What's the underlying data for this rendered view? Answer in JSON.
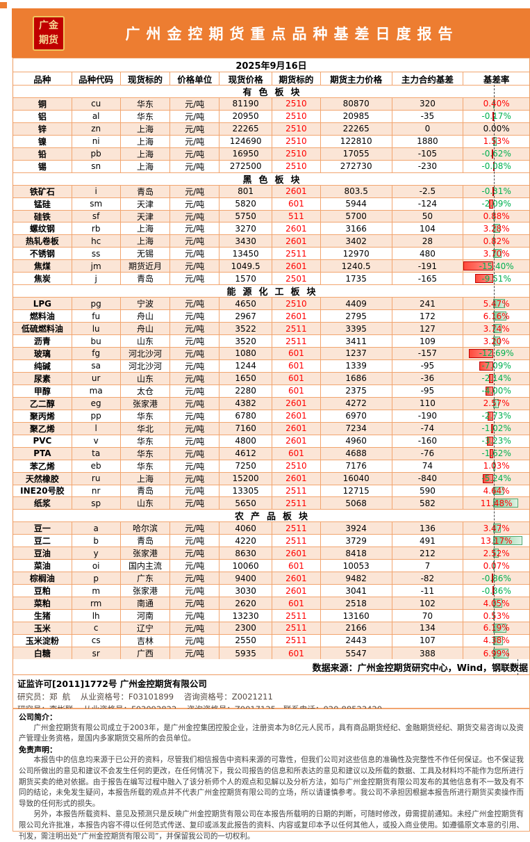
{
  "colors": {
    "accent_orange": "#ED7D31",
    "row_peach": "#FBE5D6",
    "grid_orange": "#F2A56F",
    "logo_red": "#C00000",
    "logo_gold": "#F5D794",
    "positive_text": "#FF0000",
    "negative_text": "#00B050",
    "bar_positive": "#7FCB97",
    "bar_negative": "#FF4A3C"
  },
  "report": {
    "logo_line1": "广金",
    "logo_line2": "期货",
    "title": "广州金控期货重点品种基差日度报告",
    "date": "2025年9月16日",
    "columns": [
      "品种",
      "品种代码",
      "现货标的",
      "价格单位",
      "现货价格",
      "期货标的",
      "期货主力价格",
      "主力合约基差",
      "基差率"
    ],
    "bar_axis_percent": 45,
    "bar_max_positive": 13.17,
    "bar_max_negative": 15.4,
    "sections": [
      {
        "name": "有色板块",
        "rows": [
          [
            "铜",
            "cu",
            "华东",
            "元/吨",
            "81190",
            "2510",
            "80870",
            "320",
            "0.40%"
          ],
          [
            "铝",
            "al",
            "华东",
            "元/吨",
            "20950",
            "2510",
            "20985",
            "-35",
            "-0.17%"
          ],
          [
            "锌",
            "zn",
            "上海",
            "元/吨",
            "22265",
            "2510",
            "22265",
            "0",
            "0.00%"
          ],
          [
            "镍",
            "ni",
            "上海",
            "元/吨",
            "124690",
            "2510",
            "122810",
            "1880",
            "1.53%"
          ],
          [
            "铅",
            "pb",
            "上海",
            "元/吨",
            "16950",
            "2510",
            "17055",
            "-105",
            "-0.62%"
          ],
          [
            "锡",
            "sn",
            "上海",
            "元/吨",
            "272500",
            "2510",
            "272730",
            "-230",
            "-0.08%"
          ]
        ]
      },
      {
        "name": "黑色板块",
        "rows": [
          [
            "铁矿石",
            "i",
            "青岛",
            "元/吨",
            "801",
            "2601",
            "803.5",
            "-2.5",
            "-0.31%"
          ],
          [
            "锰硅",
            "sm",
            "天津",
            "元/吨",
            "5820",
            "601",
            "5944",
            "-124",
            "-2.09%"
          ],
          [
            "硅铁",
            "sf",
            "天津",
            "元/吨",
            "5750",
            "511",
            "5700",
            "50",
            "0.88%"
          ],
          [
            "螺纹钢",
            "rb",
            "上海",
            "元/吨",
            "3270",
            "2601",
            "3166",
            "104",
            "3.28%"
          ],
          [
            "热轧卷板",
            "hc",
            "上海",
            "元/吨",
            "3430",
            "2601",
            "3402",
            "28",
            "0.82%"
          ],
          [
            "不锈钢",
            "ss",
            "无锡",
            "元/吨",
            "13450",
            "2511",
            "12970",
            "480",
            "3.70%"
          ],
          [
            "焦煤",
            "jm",
            "期货近月",
            "元/吨",
            "1049.5",
            "2601",
            "1240.5",
            "-191",
            "-15.40%"
          ],
          [
            "焦炭",
            "j",
            "青岛",
            "元/吨",
            "1570",
            "2501",
            "1735",
            "-165",
            "-9.51%"
          ]
        ]
      },
      {
        "name": "能源化工板块",
        "rows": [
          [
            "LPG",
            "pg",
            "宁波",
            "元/吨",
            "4650",
            "2510",
            "4409",
            "241",
            "5.47%"
          ],
          [
            "燃料油",
            "fu",
            "舟山",
            "元/吨",
            "2967",
            "2601",
            "2795",
            "172",
            "6.16%"
          ],
          [
            "低硫燃料油",
            "lu",
            "舟山",
            "元/吨",
            "3522",
            "2511",
            "3395",
            "127",
            "3.74%"
          ],
          [
            "沥青",
            "bu",
            "山东",
            "元/吨",
            "3520",
            "2511",
            "3411",
            "109",
            "3.20%"
          ],
          [
            "玻璃",
            "fg",
            "河北沙河",
            "元/吨",
            "1080",
            "601",
            "1237",
            "-157",
            "-12.69%"
          ],
          [
            "纯碱",
            "sa",
            "河北沙河",
            "元/吨",
            "1244",
            "601",
            "1339",
            "-95",
            "-7.09%"
          ],
          [
            "尿素",
            "ur",
            "山东",
            "元/吨",
            "1650",
            "601",
            "1686",
            "-36",
            "-2.14%"
          ],
          [
            "甲醇",
            "ma",
            "太仓",
            "元/吨",
            "2280",
            "601",
            "2375",
            "-95",
            "-4.00%"
          ],
          [
            "乙二醇",
            "eg",
            "张家港",
            "元/吨",
            "4382",
            "2601",
            "4272",
            "110",
            "2.57%"
          ],
          [
            "聚丙烯",
            "pp",
            "华东",
            "元/吨",
            "6780",
            "2601",
            "6970",
            "-190",
            "-2.73%"
          ],
          [
            "聚乙烯",
            "l",
            "华北",
            "元/吨",
            "7160",
            "2601",
            "7234",
            "-74",
            "-1.02%"
          ],
          [
            "PVC",
            "v",
            "华东",
            "元/吨",
            "4800",
            "2601",
            "4960",
            "-160",
            "-3.23%"
          ],
          [
            "PTA",
            "ta",
            "华东",
            "元/吨",
            "4612",
            "601",
            "4688",
            "-76",
            "-1.62%"
          ],
          [
            "苯乙烯",
            "eb",
            "华东",
            "元/吨",
            "7250",
            "2510",
            "7176",
            "74",
            "1.03%"
          ],
          [
            "天然橡胶",
            "ru",
            "上海",
            "元/吨",
            "15200",
            "2601",
            "16040",
            "-840",
            "-5.24%"
          ],
          [
            "INE20号胶",
            "nr",
            "青岛",
            "元/吨",
            "13305",
            "2511",
            "12715",
            "590",
            "4.64%"
          ],
          [
            "纸浆",
            "sp",
            "山东",
            "元/吨",
            "5650",
            "2511",
            "5068",
            "582",
            "11.48%"
          ]
        ]
      },
      {
        "name": "农产品板块",
        "rows": [
          [
            "豆一",
            "a",
            "哈尔滨",
            "元/吨",
            "4060",
            "2511",
            "3924",
            "136",
            "3.47%"
          ],
          [
            "豆二",
            "b",
            "青岛",
            "元/吨",
            "4220",
            "2511",
            "3729",
            "491",
            "13.17%"
          ],
          [
            "豆油",
            "y",
            "张家港",
            "元/吨",
            "8630",
            "2601",
            "8418",
            "212",
            "2.52%"
          ],
          [
            "菜油",
            "oi",
            "国内主流",
            "元/吨",
            "10060",
            "601",
            "10053",
            "7",
            "0.07%"
          ],
          [
            "棕榈油",
            "p",
            "广东",
            "元/吨",
            "9400",
            "2601",
            "9482",
            "-82",
            "-0.86%"
          ],
          [
            "豆粕",
            "m",
            "张家港",
            "元/吨",
            "3030",
            "2601",
            "3041",
            "-11",
            "-0.36%"
          ],
          [
            "菜粕",
            "rm",
            "南通",
            "元/吨",
            "2620",
            "601",
            "2518",
            "102",
            "4.05%"
          ],
          [
            "生猪",
            "lh",
            "河南",
            "元/吨",
            "13230",
            "2511",
            "13160",
            "70",
            "0.53%"
          ],
          [
            "玉米",
            "c",
            "辽宁",
            "元/吨",
            "2300",
            "2511",
            "2166",
            "134",
            "6.19%"
          ],
          [
            "玉米淀粉",
            "cs",
            "吉林",
            "元/吨",
            "2550",
            "2511",
            "2443",
            "107",
            "4.38%"
          ],
          [
            "白糖",
            "sr",
            "广西",
            "元/吨",
            "5935",
            "601",
            "5547",
            "388",
            "6.99%"
          ]
        ]
      }
    ],
    "source_note": "数据来源：广州金控期货研究中心，Wind，钢联数据"
  },
  "license": {
    "line1": "证监许可[2011]1772号 广州金控期货有限公司",
    "line2": "研究员：郑  航    从业资格号：F03101899    咨询资格号：Z0021211",
    "line3": "研究员：李彬联    从业资格号：F03092822    咨询资格号：Z0017125   联系电话：020-88523420"
  },
  "footer": {
    "intro_heading": "公司简介：",
    "intro": "广州金控期货有限公司成立于2003年，是广州金控集团控股企业，注册资本为8亿元人民币，具有商品期货经纪、金融期货经纪、期货交易咨询以及资产管理业务资格，是国内多家期货交易所的会员单位。",
    "disclaimer_heading": "免责声明：",
    "disclaimer1": "本报告中的信息均来源于已公开的资料，尽管我们相信报告中资料来源的可靠性，但我们公司对这些信息的准确性及完整性不作任何保证。也不保证我公司所做出的意见和建议不会发生任何的更改，在任何情况下，我公司报告的信息和所表达的意见和建议以及所载的数据、工具及材料均不能作为您所进行期货买卖的绝对依据。由于报告在编写过程中融入了该分析师个人的观点和见解以及分析方法，如与广州金控期货有限公司发布的其他信息有不一致及有不同的结论，未免发生疑问，本报告所载的观点并不代表广州金控期货有限公司的立场，所以请谨慎参考。我公司不承担因根据本报告所进行期货买卖操作而导致的任何形式的损失。",
    "disclaimer2": "另外，本报告所载资料、意见及预测只是反映广州金控期货有限公司在本报告所载明的日期的判断，可随时修改，毋需提前通知。未经广州金控期货有限公司允许批准，本报告内容不得以任何范式传送、复印或派发此报告的资料、内容或复印本予以任何其他人，或投入商业使用。如遵循原文本意的引用、刊发，需注明出处“广州金控期货有限公司”，并保留我公司的一切权利。"
  }
}
